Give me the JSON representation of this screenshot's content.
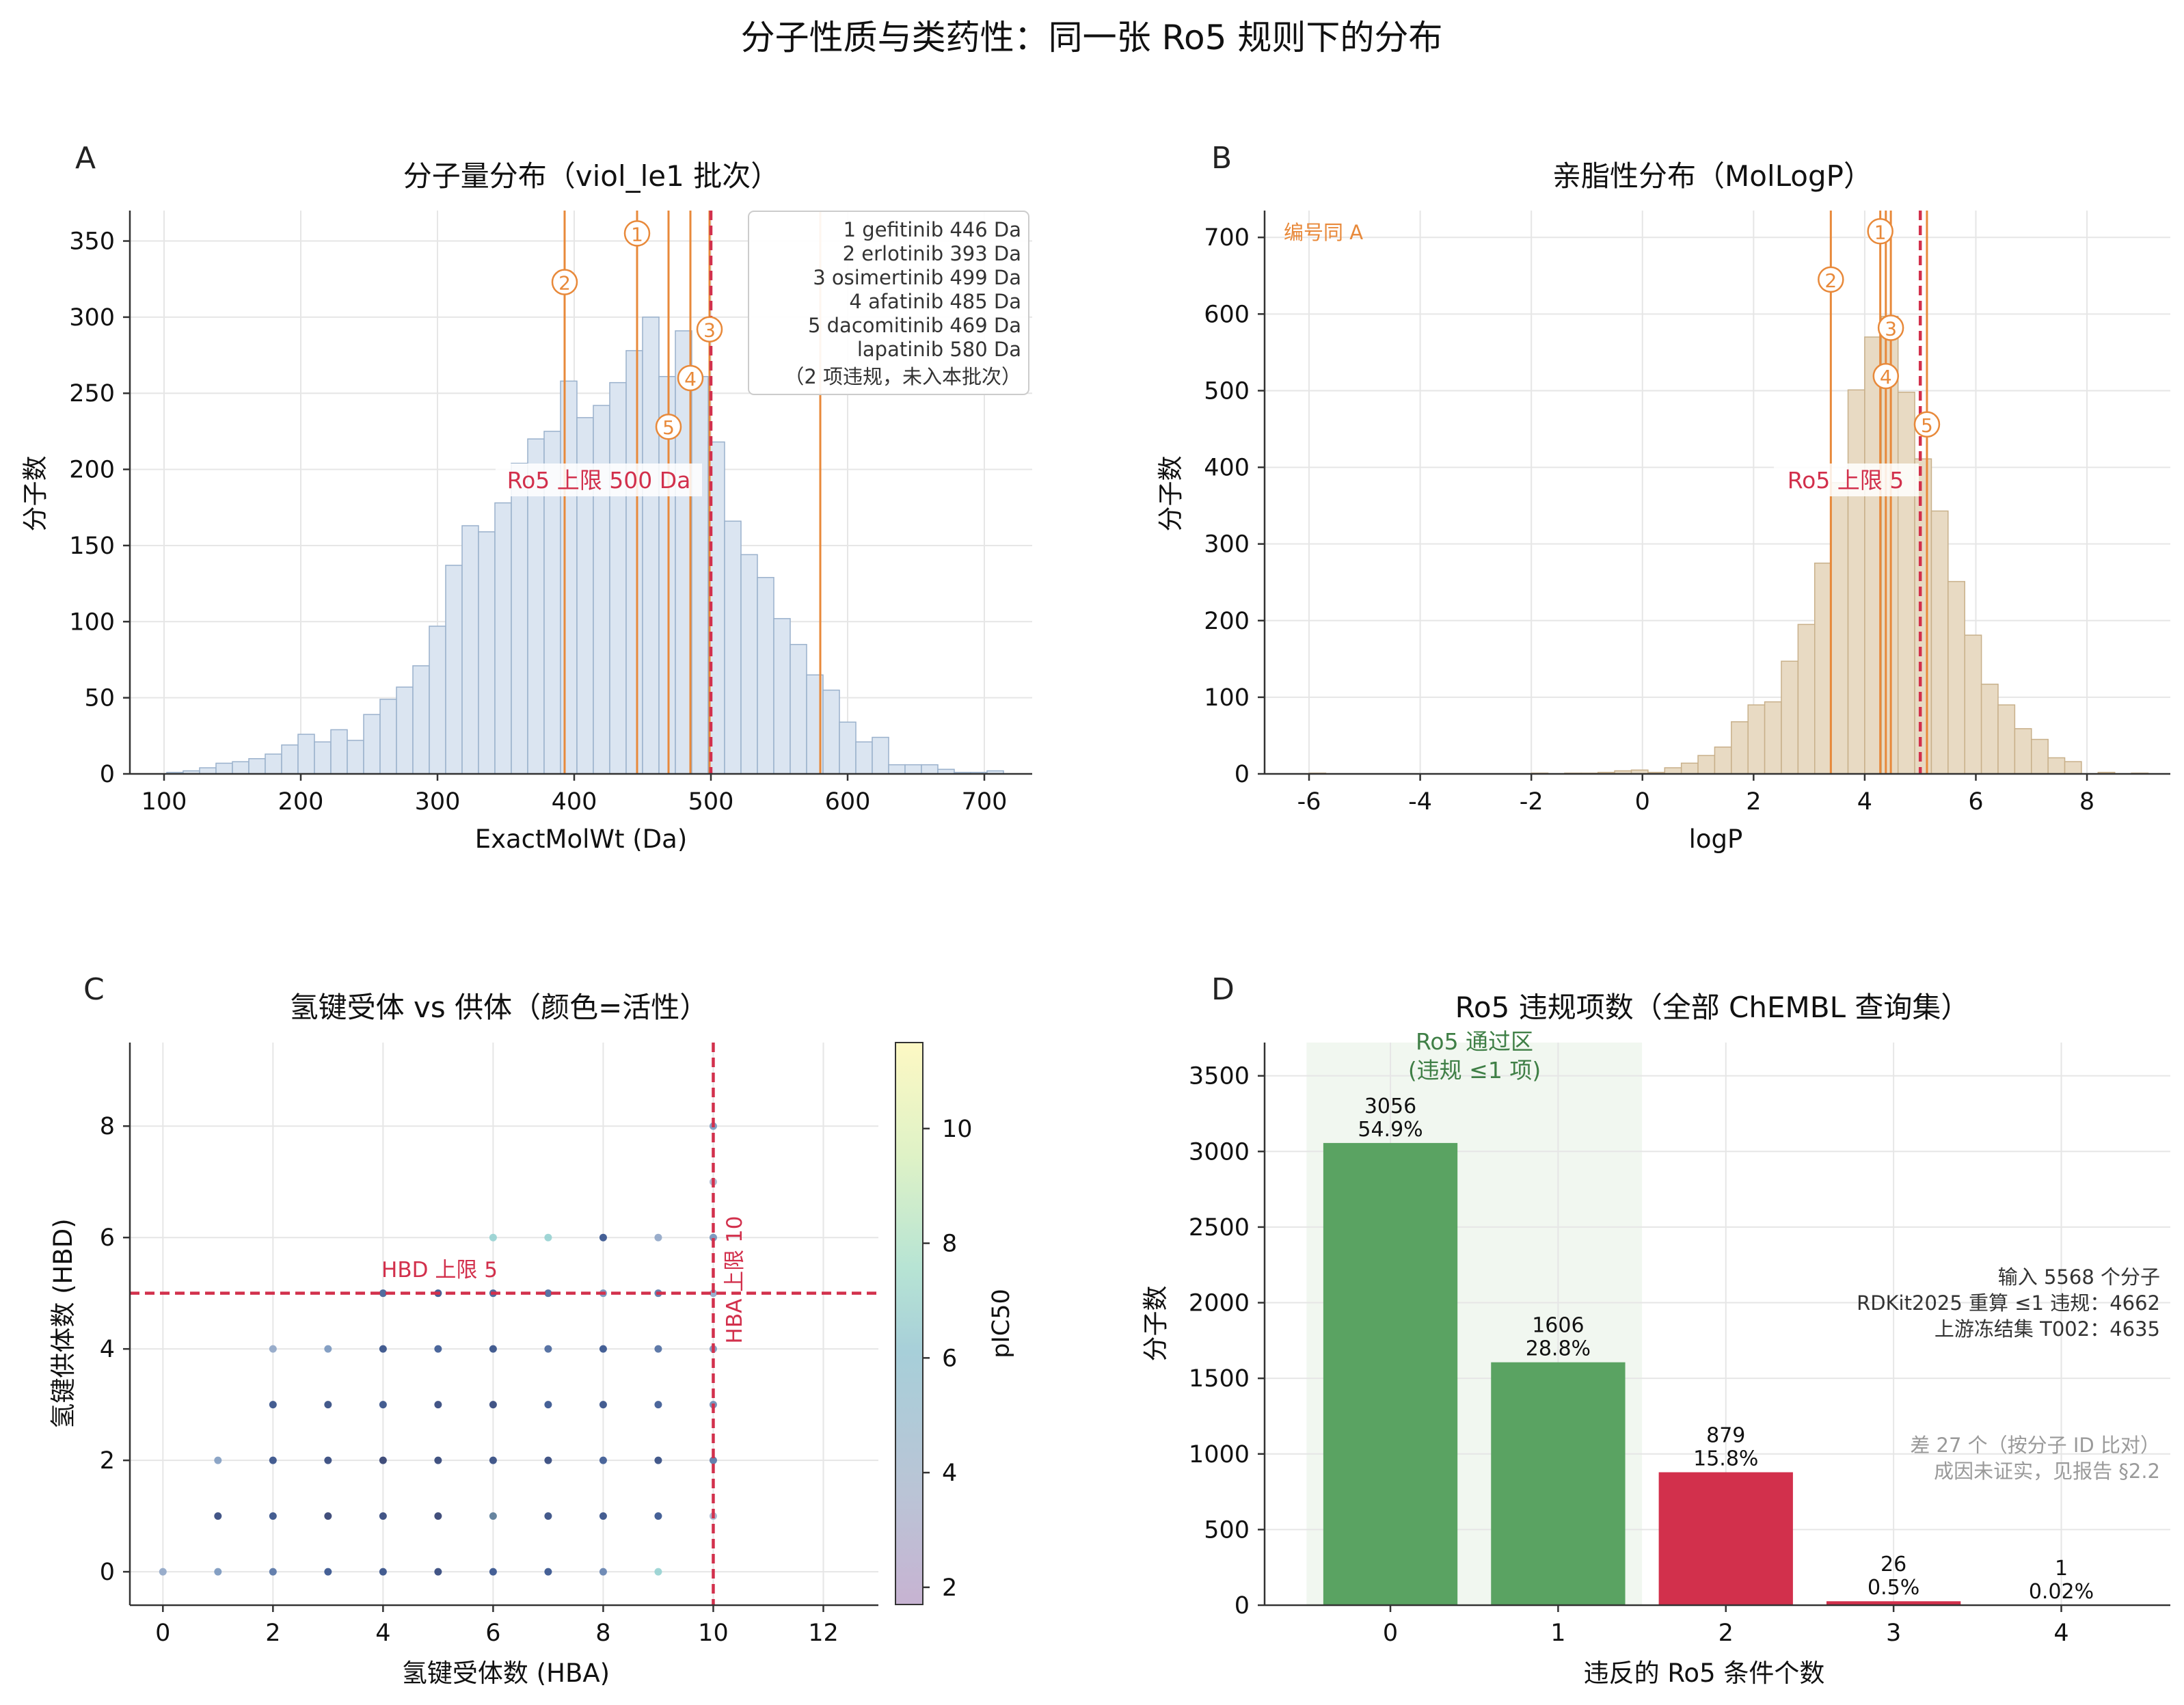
{
  "figure": {
    "suptitle": "分子性质与类药性：同一张 Ro5 规则下的分布"
  },
  "colors": {
    "hist_a": "#dbe5f1",
    "hist_a_edge": "#9ab1cc",
    "hist_b": "#e8dac3",
    "hist_b_edge": "#c8b08a",
    "orange": "#e8893a",
    "red": "#d2304c",
    "green": "#5aa362",
    "green_dark": "#3f7f46",
    "grid": "#e6e6e6",
    "gray": "#9a9a9a"
  },
  "chart_data": [
    {
      "panel": "A",
      "type": "bar",
      "title": "分子量分布（viol_le1 批次）",
      "xlabel": "ExactMolWt (Da)",
      "ylabel": "分子数",
      "xlim": [
        75,
        735
      ],
      "ylim": [
        0,
        370
      ],
      "xticks": [
        100,
        200,
        300,
        400,
        500,
        600,
        700
      ],
      "yticks": [
        0,
        50,
        100,
        150,
        200,
        250,
        300,
        350
      ],
      "bin_width": 12,
      "bins": [
        {
          "x": 102,
          "v": 1
        },
        {
          "x": 114,
          "v": 2
        },
        {
          "x": 126,
          "v": 4
        },
        {
          "x": 138,
          "v": 7
        },
        {
          "x": 150,
          "v": 8
        },
        {
          "x": 162,
          "v": 10
        },
        {
          "x": 174,
          "v": 13
        },
        {
          "x": 186,
          "v": 19
        },
        {
          "x": 198,
          "v": 26
        },
        {
          "x": 210,
          "v": 21
        },
        {
          "x": 222,
          "v": 29
        },
        {
          "x": 234,
          "v": 22
        },
        {
          "x": 246,
          "v": 39
        },
        {
          "x": 258,
          "v": 49
        },
        {
          "x": 270,
          "v": 57
        },
        {
          "x": 282,
          "v": 71
        },
        {
          "x": 294,
          "v": 97
        },
        {
          "x": 306,
          "v": 137
        },
        {
          "x": 318,
          "v": 163
        },
        {
          "x": 330,
          "v": 159
        },
        {
          "x": 342,
          "v": 178
        },
        {
          "x": 354,
          "v": 204
        },
        {
          "x": 366,
          "v": 220
        },
        {
          "x": 378,
          "v": 225
        },
        {
          "x": 390,
          "v": 258
        },
        {
          "x": 402,
          "v": 234
        },
        {
          "x": 414,
          "v": 242
        },
        {
          "x": 426,
          "v": 257
        },
        {
          "x": 438,
          "v": 278
        },
        {
          "x": 450,
          "v": 300
        },
        {
          "x": 462,
          "v": 261
        },
        {
          "x": 474,
          "v": 291
        },
        {
          "x": 486,
          "v": 261
        },
        {
          "x": 498,
          "v": 218
        },
        {
          "x": 510,
          "v": 166
        },
        {
          "x": 522,
          "v": 144
        },
        {
          "x": 534,
          "v": 129
        },
        {
          "x": 546,
          "v": 102
        },
        {
          "x": 558,
          "v": 85
        },
        {
          "x": 570,
          "v": 65
        },
        {
          "x": 582,
          "v": 55
        },
        {
          "x": 594,
          "v": 34
        },
        {
          "x": 606,
          "v": 21
        },
        {
          "x": 618,
          "v": 24
        },
        {
          "x": 630,
          "v": 6
        },
        {
          "x": 642,
          "v": 6
        },
        {
          "x": 654,
          "v": 6
        },
        {
          "x": 666,
          "v": 3
        },
        {
          "x": 678,
          "v": 1
        },
        {
          "x": 690,
          "v": 1
        },
        {
          "x": 702,
          "v": 2
        }
      ],
      "limit": {
        "x": 500,
        "label": "Ro5 上限 500 Da"
      },
      "markers": [
        {
          "num": "1",
          "symbol": "①",
          "x": 446,
          "y": 355
        },
        {
          "num": "2",
          "symbol": "②",
          "x": 393,
          "y": 323
        },
        {
          "num": "3",
          "symbol": "③",
          "x": 499,
          "y": 292
        },
        {
          "num": "4",
          "symbol": "④",
          "x": 485,
          "y": 260
        },
        {
          "num": "5",
          "symbol": "⑤",
          "x": 469,
          "y": 228
        }
      ],
      "extra_lines": [
        580
      ],
      "legend_lines": [
        "1 gefitinib  446 Da",
        "2 erlotinib  393 Da",
        "3 osimertinib  499 Da",
        "4 afatinib  485 Da",
        "5 dacomitinib  469 Da",
        "lapatinib  580 Da",
        "（2 项违规，未入本批次）"
      ],
      "legend_position": "top-right"
    },
    {
      "panel": "B",
      "type": "bar",
      "title": "亲脂性分布（MolLogP）",
      "xlabel": "logP",
      "ylabel": "分子数",
      "xlim": [
        -6.8,
        9.5
      ],
      "ylim": [
        0,
        735
      ],
      "xticks": [
        -6,
        -4,
        -2,
        0,
        2,
        4,
        6,
        8
      ],
      "yticks": [
        0,
        100,
        200,
        300,
        400,
        500,
        600,
        700
      ],
      "bin_width": 0.3,
      "bins": [
        {
          "x": -6.0,
          "v": 1
        },
        {
          "x": -2.0,
          "v": 1
        },
        {
          "x": -1.4,
          "v": 1
        },
        {
          "x": -1.1,
          "v": 1
        },
        {
          "x": -0.8,
          "v": 2
        },
        {
          "x": -0.5,
          "v": 4
        },
        {
          "x": -0.2,
          "v": 5
        },
        {
          "x": 0.1,
          "v": 2
        },
        {
          "x": 0.4,
          "v": 8
        },
        {
          "x": 0.7,
          "v": 14
        },
        {
          "x": 1.0,
          "v": 24
        },
        {
          "x": 1.3,
          "v": 35
        },
        {
          "x": 1.6,
          "v": 68
        },
        {
          "x": 1.9,
          "v": 90
        },
        {
          "x": 2.2,
          "v": 94
        },
        {
          "x": 2.5,
          "v": 147
        },
        {
          "x": 2.8,
          "v": 195
        },
        {
          "x": 3.1,
          "v": 275
        },
        {
          "x": 3.4,
          "v": 380
        },
        {
          "x": 3.7,
          "v": 501
        },
        {
          "x": 4.0,
          "v": 570
        },
        {
          "x": 4.3,
          "v": 597
        },
        {
          "x": 4.6,
          "v": 498
        },
        {
          "x": 4.9,
          "v": 411
        },
        {
          "x": 5.2,
          "v": 343
        },
        {
          "x": 5.5,
          "v": 251
        },
        {
          "x": 5.8,
          "v": 181
        },
        {
          "x": 6.1,
          "v": 117
        },
        {
          "x": 6.4,
          "v": 90
        },
        {
          "x": 6.7,
          "v": 59
        },
        {
          "x": 7.0,
          "v": 45
        },
        {
          "x": 7.3,
          "v": 21
        },
        {
          "x": 7.6,
          "v": 16
        },
        {
          "x": 8.2,
          "v": 2
        },
        {
          "x": 8.8,
          "v": 1
        }
      ],
      "limit": {
        "x": 5,
        "label": "Ro5 上限 5"
      },
      "markers": [
        {
          "num": "1",
          "symbol": "①",
          "x": 4.28,
          "y": 708
        },
        {
          "num": "2",
          "symbol": "②",
          "x": 3.39,
          "y": 645
        },
        {
          "num": "3",
          "symbol": "③",
          "x": 4.47,
          "y": 582
        },
        {
          "num": "4",
          "symbol": "④",
          "x": 4.38,
          "y": 519
        },
        {
          "num": "5",
          "symbol": "⑤",
          "x": 5.12,
          "y": 456
        }
      ],
      "note": "编号同 A"
    },
    {
      "panel": "C",
      "type": "scatter",
      "title": "氢键受体 vs 供体（颜色=活性）",
      "xlabel": "氢键受体数 (HBA)",
      "ylabel": "氢键供体数 (HBD)",
      "xlim": [
        -0.6,
        13
      ],
      "ylim": [
        -0.6,
        9.5
      ],
      "xticks": [
        0,
        2,
        4,
        6,
        8,
        10,
        12
      ],
      "yticks": [
        0,
        2,
        4,
        6,
        8
      ],
      "colorbar": {
        "label": "pIC50",
        "range": [
          1.7,
          11.5
        ],
        "ticks": [
          2,
          4,
          6,
          8,
          10
        ]
      },
      "hba_limit": {
        "x": 10,
        "label": "HBA 上限 10"
      },
      "hbd_limit": {
        "y": 5,
        "label": "HBD 上限 5"
      },
      "points": [
        [
          0,
          0,
          5.0
        ],
        [
          1,
          0,
          5.5
        ],
        [
          2,
          0,
          6.0
        ],
        [
          3,
          0,
          6.5
        ],
        [
          4,
          0,
          6.6
        ],
        [
          5,
          0,
          6.8
        ],
        [
          6,
          0,
          6.5
        ],
        [
          7,
          0,
          6.5
        ],
        [
          8,
          0,
          5.8
        ],
        [
          9,
          0,
          7.5
        ],
        [
          2,
          1,
          6.6
        ],
        [
          3,
          1,
          7.0
        ],
        [
          4,
          1,
          6.8
        ],
        [
          5,
          1,
          7.0
        ],
        [
          6,
          1,
          7.2
        ],
        [
          7,
          1,
          6.7
        ],
        [
          8,
          1,
          6.6
        ],
        [
          9,
          1,
          6.5
        ],
        [
          10,
          1,
          4.6
        ],
        [
          1,
          1,
          6.8
        ],
        [
          1,
          2,
          5.3
        ],
        [
          2,
          2,
          6.6
        ],
        [
          3,
          2,
          6.8
        ],
        [
          4,
          2,
          7.0
        ],
        [
          5,
          2,
          6.9
        ],
        [
          6,
          2,
          6.7
        ],
        [
          7,
          2,
          6.8
        ],
        [
          8,
          2,
          6.4
        ],
        [
          9,
          2,
          6.7
        ],
        [
          10,
          2,
          6.0
        ],
        [
          2,
          3,
          6.6
        ],
        [
          3,
          3,
          6.7
        ],
        [
          4,
          3,
          6.6
        ],
        [
          5,
          3,
          6.8
        ],
        [
          6,
          3,
          6.8
        ],
        [
          7,
          3,
          6.5
        ],
        [
          8,
          3,
          6.6
        ],
        [
          9,
          3,
          6.4
        ],
        [
          10,
          3,
          5.7
        ],
        [
          2,
          4,
          5.0
        ],
        [
          3,
          4,
          5.5
        ],
        [
          4,
          4,
          6.6
        ],
        [
          5,
          4,
          6.4
        ],
        [
          6,
          4,
          6.6
        ],
        [
          7,
          4,
          6.2
        ],
        [
          8,
          4,
          6.5
        ],
        [
          9,
          4,
          6.1
        ],
        [
          10,
          4,
          5.5
        ],
        [
          4,
          5,
          6.3
        ],
        [
          5,
          5,
          6.5
        ],
        [
          6,
          5,
          6.3
        ],
        [
          7,
          5,
          6.2
        ],
        [
          8,
          5,
          5.6
        ],
        [
          9,
          5,
          6.0
        ],
        [
          10,
          5,
          5.0
        ],
        [
          6,
          6,
          7.5
        ],
        [
          7,
          6,
          7.5
        ],
        [
          8,
          6,
          6.5
        ],
        [
          9,
          6,
          5.0
        ],
        [
          10,
          6,
          5.6
        ],
        [
          10,
          7,
          4.5
        ],
        [
          10,
          8,
          5.5
        ]
      ]
    },
    {
      "panel": "D",
      "type": "bar",
      "title": "Ro5 违规项数（全部 ChEMBL 查询集）",
      "xlabel": "违反的 Ro5 条件个数",
      "ylabel": "分子数",
      "xlim": [
        -0.75,
        4.65
      ],
      "ylim": [
        0,
        3720
      ],
      "xticks": [
        0,
        1,
        2,
        3,
        4
      ],
      "yticks": [
        0,
        500,
        1000,
        1500,
        2000,
        2500,
        3000,
        3500
      ],
      "categories": [
        0,
        1,
        2,
        3,
        4
      ],
      "values": [
        3056,
        1606,
        879,
        26,
        1
      ],
      "counts": [
        "3056",
        "1606",
        "879",
        "26",
        "1"
      ],
      "percents": [
        "54.9%",
        "28.8%",
        "15.8%",
        "0.5%",
        "0.02%"
      ],
      "pass_zone": {
        "x0": -0.5,
        "x1": 1.5,
        "label1": "Ro5 通过区",
        "label2": "(违规 ≤1 项)"
      },
      "info": [
        "输入 5568 个分子",
        "RDKit2025 重算 ≤1 违规：4662",
        "上游冻结集 T002：4635"
      ],
      "note": [
        "差 27 个（按分子 ID 比对）",
        "成因未证实，见报告 §2.2"
      ]
    }
  ]
}
